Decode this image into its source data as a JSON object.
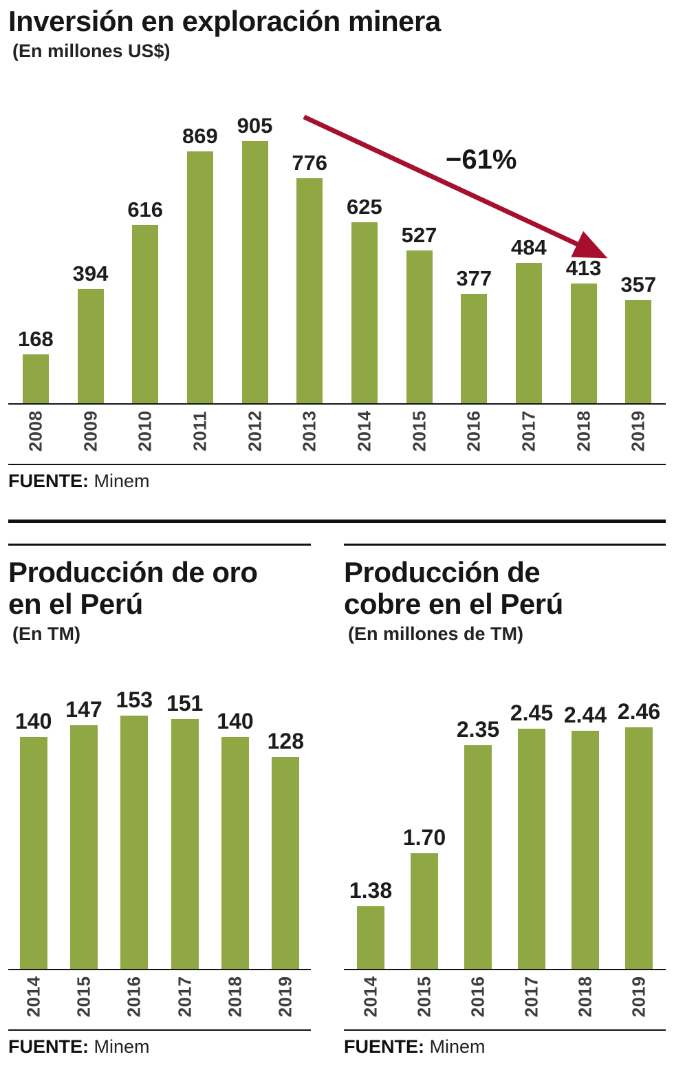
{
  "colors": {
    "bar": "#8FA843",
    "arrow": "#A60F2D",
    "text": "#161616"
  },
  "chart_data": [
    {
      "type": "bar",
      "title": "Inversión en exploración minera",
      "subtitle": "(En millones US$)",
      "categories": [
        "2008",
        "2009",
        "2010",
        "2011",
        "2012",
        "2013",
        "2014",
        "2015",
        "2016",
        "2017",
        "2018",
        "2019"
      ],
      "values": [
        168,
        394,
        616,
        869,
        905,
        776,
        625,
        527,
        377,
        484,
        413,
        357
      ],
      "value_labels": [
        "168",
        "394",
        "616",
        "869",
        "905",
        "776",
        "625",
        "527",
        "377",
        "484",
        "413",
        "357"
      ],
      "ylim": [
        0,
        950
      ],
      "grid": false,
      "annotation": {
        "text": "−61%"
      },
      "source": {
        "label": "FUENTE:",
        "value": "Minem"
      }
    },
    {
      "type": "bar",
      "title": "Producción de oro en el Perú",
      "subtitle": "(En TM)",
      "categories": [
        "2014",
        "2015",
        "2016",
        "2017",
        "2018",
        "2019"
      ],
      "values": [
        140,
        147,
        153,
        151,
        140,
        128
      ],
      "value_labels": [
        "140",
        "147",
        "153",
        "151",
        "140",
        "128"
      ],
      "ylim": [
        0,
        160
      ],
      "grid": false,
      "source": {
        "label": "FUENTE:",
        "value": "Minem"
      }
    },
    {
      "type": "bar",
      "title": "Producción de cobre en el Perú",
      "subtitle": "(En millones de TM)",
      "categories": [
        "2014",
        "2015",
        "2016",
        "2017",
        "2018",
        "2019"
      ],
      "values": [
        1.38,
        1.7,
        2.35,
        2.45,
        2.44,
        2.46
      ],
      "value_labels": [
        "1.38",
        "1.70",
        "2.35",
        "2.45",
        "2.44",
        "2.46"
      ],
      "ylim": [
        1.0,
        2.6
      ],
      "grid": false,
      "source": {
        "label": "FUENTE:",
        "value": "Minem"
      }
    }
  ]
}
